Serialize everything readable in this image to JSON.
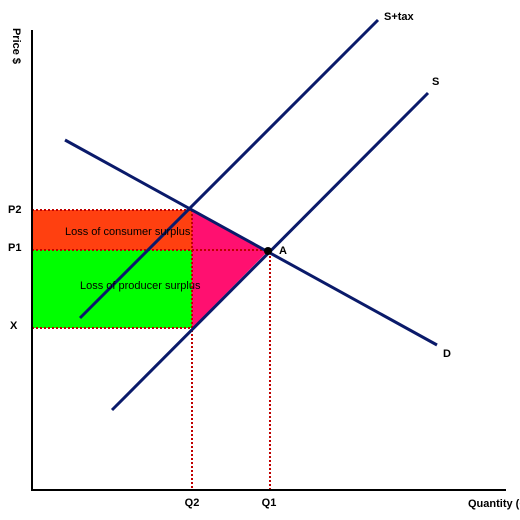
{
  "axes": {
    "y_label": "Price $",
    "x_label": "Quantity (Q)"
  },
  "price_labels": [
    "P2",
    "P1",
    "X"
  ],
  "quantity_labels": [
    "Q2",
    "Q1"
  ],
  "curves": {
    "supply_tax": "S+tax",
    "supply": "S",
    "demand": "D"
  },
  "point": "A",
  "regions": {
    "consumer": "Loss of consumer surplus",
    "producer": "Loss of producer surplus"
  }
}
